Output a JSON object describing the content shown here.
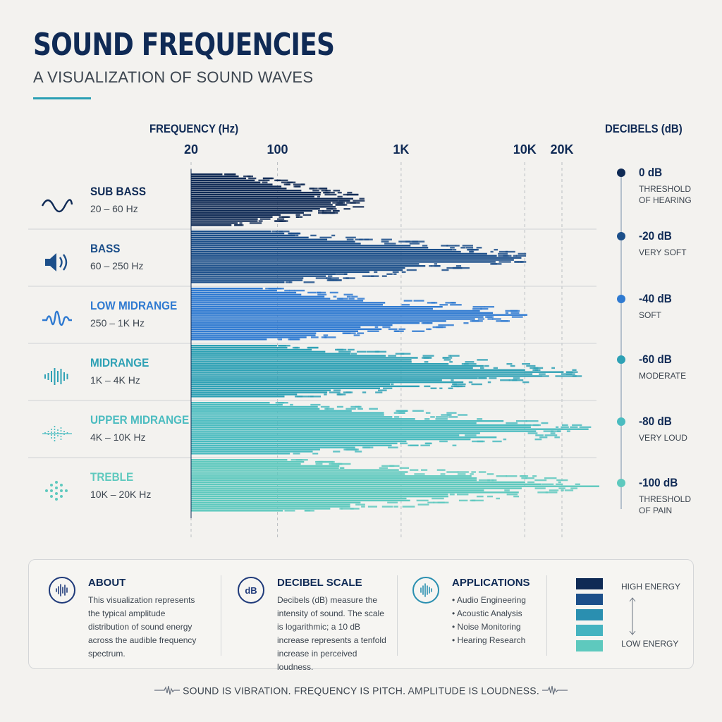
{
  "title": "SOUND FREQUENCIES",
  "subtitle": "A VISUALIZATION OF SOUND WAVES",
  "colors": {
    "navy": "#0f2a55",
    "blue_dark": "#1c4f8a",
    "blue": "#2f7ad1",
    "teal": "#2ea1b5",
    "teal_light": "#4bbcc0",
    "aqua": "#5ec9be"
  },
  "chart_data": {
    "type": "area",
    "xlabel": "FREQUENCY (Hz)",
    "ylabel": "DECIBELS (dB)",
    "x_scale": "log",
    "x_ticks": [
      {
        "value": 20,
        "label": "20"
      },
      {
        "value": 100,
        "label": "100"
      },
      {
        "value": 1000,
        "label": "1K"
      },
      {
        "value": 10000,
        "label": "10K"
      },
      {
        "value": 20000,
        "label": "20K"
      }
    ],
    "xlim": [
      20,
      20000
    ],
    "series": [
      {
        "name": "SUB BASS",
        "range": "20 – 60 Hz",
        "icon": "sine-wave-icon",
        "color": "#0f2a55",
        "extent_hz": 500
      },
      {
        "name": "BASS",
        "range": "60 – 250 Hz",
        "icon": "speaker-icon",
        "color": "#1c4f8a",
        "extent_hz": 11000
      },
      {
        "name": "LOW MIDRANGE",
        "range": "250 – 1K Hz",
        "icon": "waveform-icon",
        "color": "#2f7ad1",
        "extent_hz": 10500
      },
      {
        "name": "MIDRANGE",
        "range": "1K – 4K Hz",
        "icon": "soundwave-bars-icon",
        "color": "#2ea1b5",
        "extent_hz": 30000
      },
      {
        "name": "UPPER MIDRANGE",
        "range": "4K – 10K Hz",
        "icon": "sparse-soundwave-icon",
        "color": "#4bbcc0",
        "extent_hz": 35000
      },
      {
        "name": "TREBLE",
        "range": "10K – 20K Hz",
        "icon": "dot-matrix-icon",
        "color": "#5ec9be",
        "extent_hz": 80000
      }
    ],
    "db_scale": [
      {
        "value": "0 dB",
        "label": "THRESHOLD OF HEARING",
        "color": "#0f2a55"
      },
      {
        "value": "-20 dB",
        "label": "VERY SOFT",
        "color": "#1c4f8a"
      },
      {
        "value": "-40 dB",
        "label": "SOFT",
        "color": "#2f7ad1"
      },
      {
        "value": "-60 dB",
        "label": "MODERATE",
        "color": "#2ea1b5"
      },
      {
        "value": "-80 dB",
        "label": "VERY LOUD",
        "color": "#4bbcc0"
      },
      {
        "value": "-100 dB",
        "label": "THRESHOLD OF PAIN",
        "color": "#5ec9be"
      }
    ]
  },
  "info": {
    "about": {
      "heading": "ABOUT",
      "body": "This visualization represents the typical amplitude distribution of sound energy across the audible frequency spectrum.",
      "icon": "waveform-circle-icon"
    },
    "decibel": {
      "heading": "DECIBEL SCALE",
      "body": "Decibels (dB) measure the intensity of sound. The scale is logarithmic; a 10 dB increase represents a tenfold increase in perceived loudness.",
      "icon_text": "dB"
    },
    "applications": {
      "heading": "APPLICATIONS",
      "items": [
        "Audio Engineering",
        "Acoustic Analysis",
        "Noise Monitoring",
        "Hearing Research"
      ],
      "icon": "soundwave-circle-icon"
    },
    "energy": {
      "high": "HIGH ENERGY",
      "low": "LOW ENERGY",
      "swatches": [
        "#0f2a55",
        "#1c4f8a",
        "#2a8fb0",
        "#45b3c0",
        "#5ec9be"
      ]
    }
  },
  "footer": "SOUND IS VIBRATION. FREQUENCY IS PITCH. AMPLITUDE IS LOUDNESS."
}
